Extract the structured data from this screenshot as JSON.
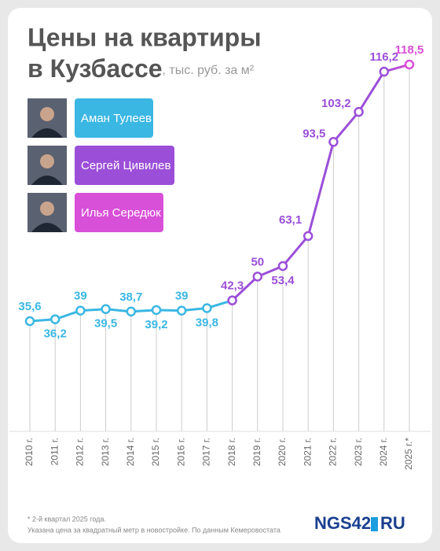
{
  "chart_data": {
    "type": "line",
    "title": [
      "Цены на квартиры",
      "в Кузбассе"
    ],
    "subtitle": ", тыс. руб. за м²",
    "categories": [
      "2010 г.",
      "2011 г.",
      "2012 г.",
      "2013 г.",
      "2014 г.",
      "2015 г.",
      "2016 г.",
      "2017 г.",
      "2018 г.",
      "2019 г.",
      "2020 г.",
      "2021 г.",
      "2022 г.",
      "2023 г.",
      "2024 г.",
      "2025 г.*"
    ],
    "series": [
      {
        "name": "Аман Тулеев",
        "color": "#3bb7e3",
        "values": [
          35.6,
          36.2,
          39,
          39.5,
          38.7,
          39.2,
          39,
          39.8,
          null,
          null,
          null,
          null,
          null,
          null,
          null,
          null
        ],
        "value_labels": [
          "35,6",
          "36,2",
          "39",
          "39,5",
          "38,7",
          "39,2",
          "39",
          "39,8",
          null,
          null,
          null,
          null,
          null,
          null,
          null,
          null
        ]
      },
      {
        "name": "Сергей Цивилев",
        "color": "#9b4fd8",
        "values": [
          null,
          null,
          null,
          null,
          null,
          null,
          null,
          null,
          42.3,
          50,
          53.4,
          63.1,
          93.5,
          103.2,
          116.2,
          null
        ],
        "value_labels": [
          null,
          null,
          null,
          null,
          null,
          null,
          null,
          null,
          "42,3",
          "50",
          "53,4",
          "63,1",
          "93,5",
          "103,2",
          "116,2",
          null
        ]
      },
      {
        "name": "Илья Середюк",
        "color": "#d84fd8",
        "values": [
          null,
          null,
          null,
          null,
          null,
          null,
          null,
          null,
          null,
          null,
          null,
          null,
          null,
          null,
          null,
          118.5
        ],
        "value_labels": [
          null,
          null,
          null,
          null,
          null,
          null,
          null,
          null,
          null,
          null,
          null,
          null,
          null,
          null,
          null,
          "118,5"
        ]
      }
    ],
    "footnotes": [
      "* 2-й квартал 2025 года.",
      "Указана цена за квадратный метр в новостройке. По данным Кемеровостата"
    ],
    "logo": [
      "NGS42",
      "RU"
    ]
  }
}
